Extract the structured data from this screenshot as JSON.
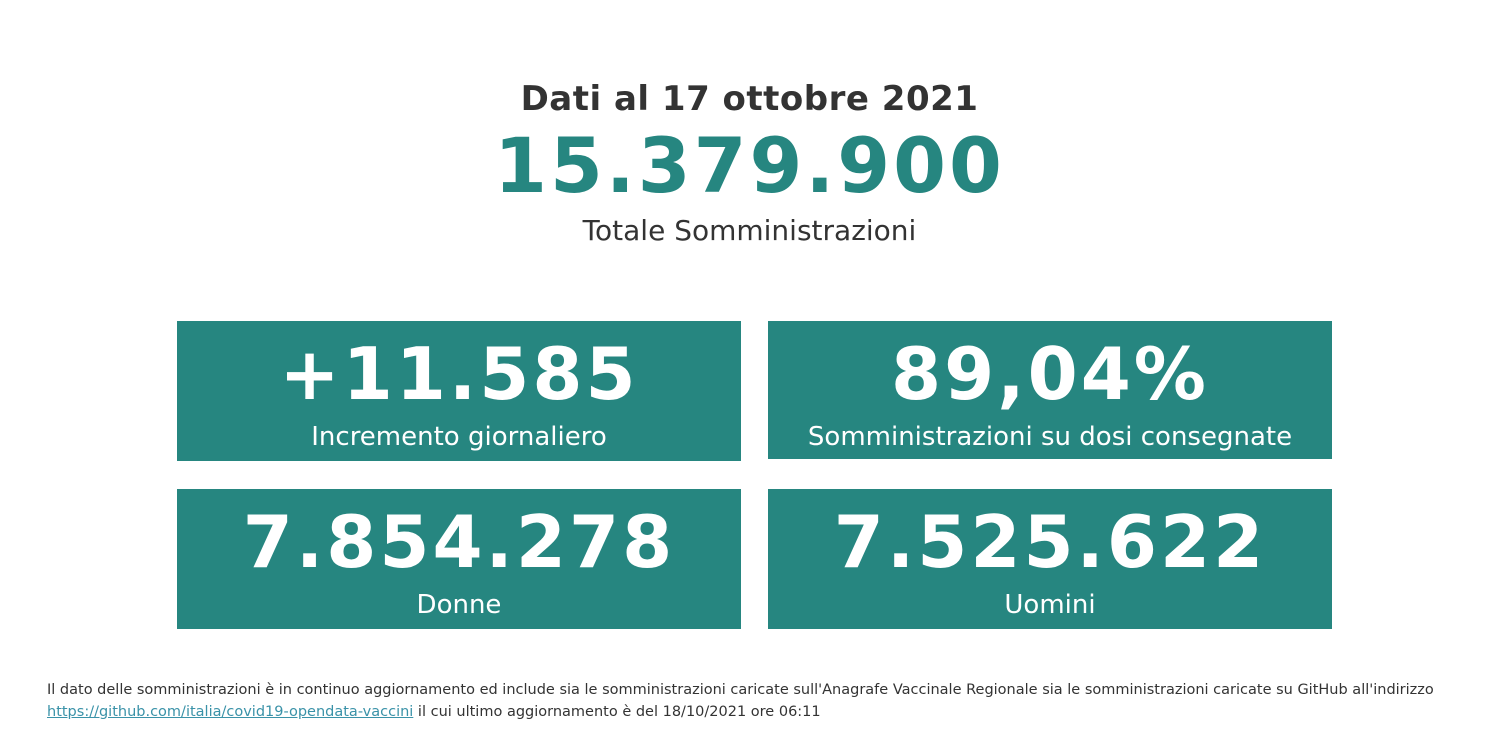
{
  "header": {
    "date_line": "Dati al 17 ottobre 2021",
    "total_value": "15.379.900",
    "total_label": "Totale Somministrazioni"
  },
  "tiles": [
    {
      "value": "+11.585",
      "label": "Incremento giornaliero"
    },
    {
      "value": "89,04%",
      "label": "Somministrazioni su dosi consegnate"
    },
    {
      "value": "7.854.278",
      "label": "Donne"
    },
    {
      "value": "7.525.622",
      "label": "Uomini"
    }
  ],
  "footnote": {
    "text_before_link": "Il dato delle somministrazioni è in continuo aggiornamento ed include sia le somministrazioni caricate sull'Anagrafe Vaccinale Regionale sia le somministrazioni caricate su GitHub all'indirizzo ",
    "link_text": "https://github.com/italia/covid19-opendata-vaccini",
    "text_after_link": " il cui ultimo aggiornamento è del 18/10/2021 ore 06:11"
  },
  "colors": {
    "accent": "#268680",
    "text": "#333333",
    "link": "#3a92a8",
    "background": "#ffffff"
  }
}
